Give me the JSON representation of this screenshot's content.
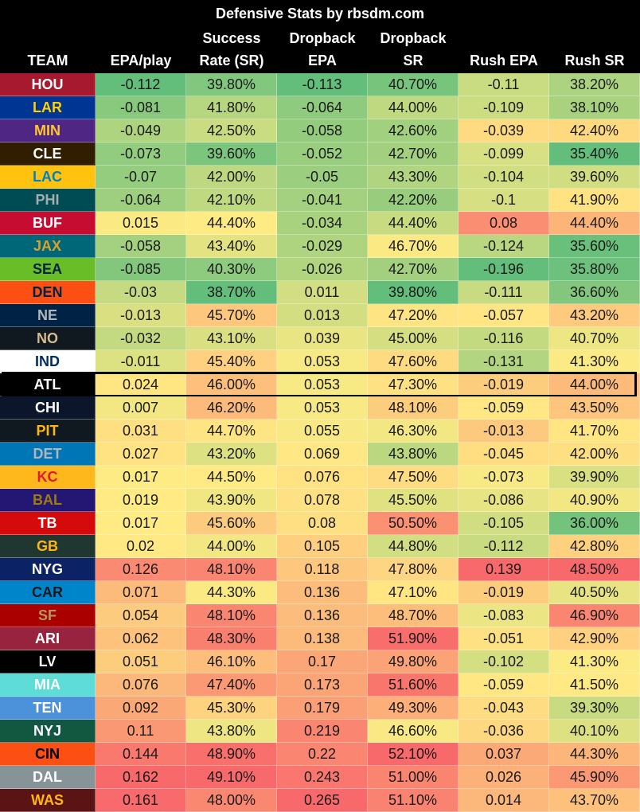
{
  "chart_data": {
    "type": "table",
    "title": "Defensive Stats by rbsdm.com",
    "columns": [
      {
        "key": "team",
        "label": [
          "",
          "",
          "TEAM"
        ]
      },
      {
        "key": "epa",
        "label": [
          "",
          "",
          "EPA/play"
        ]
      },
      {
        "key": "sr",
        "label": [
          "",
          "Success",
          "Rate (SR)"
        ]
      },
      {
        "key": "dbepa",
        "label": [
          "",
          "Dropback",
          "EPA"
        ]
      },
      {
        "key": "dbsr",
        "label": [
          "",
          "Dropback",
          "SR"
        ]
      },
      {
        "key": "rushepa",
        "label": [
          "",
          "",
          "Rush EPA"
        ]
      },
      {
        "key": "rushsr",
        "label": [
          "",
          "",
          "Rush SR"
        ]
      }
    ],
    "highlighted_team": "ATL",
    "rows": [
      {
        "team": "HOU",
        "bg": "#A6192E",
        "fg": "#FFFFFF",
        "epa": "-0.112",
        "sr": "39.80%",
        "dbepa": "-0.113",
        "dbsr": "40.70%",
        "rushepa": "-0.11",
        "rushsr": "38.20%"
      },
      {
        "team": "LAR",
        "bg": "#003594",
        "fg": "#FFD100",
        "epa": "-0.081",
        "sr": "41.80%",
        "dbepa": "-0.064",
        "dbsr": "44.00%",
        "rushepa": "-0.109",
        "rushsr": "38.10%"
      },
      {
        "team": "MIN",
        "bg": "#4F2683",
        "fg": "#FFC62F",
        "epa": "-0.049",
        "sr": "42.50%",
        "dbepa": "-0.058",
        "dbsr": "42.60%",
        "rushepa": "-0.039",
        "rushsr": "42.40%"
      },
      {
        "team": "CLE",
        "bg": "#311D00",
        "fg": "#FFFFFF",
        "epa": "-0.073",
        "sr": "39.60%",
        "dbepa": "-0.052",
        "dbsr": "42.70%",
        "rushepa": "-0.099",
        "rushsr": "35.40%"
      },
      {
        "team": "LAC",
        "bg": "#FFC20E",
        "fg": "#0080C6",
        "epa": "-0.07",
        "sr": "42.00%",
        "dbepa": "-0.05",
        "dbsr": "43.30%",
        "rushepa": "-0.104",
        "rushsr": "39.60%"
      },
      {
        "team": "PHI",
        "bg": "#004C54",
        "fg": "#A5ACAF",
        "epa": "-0.064",
        "sr": "42.10%",
        "dbepa": "-0.041",
        "dbsr": "42.20%",
        "rushepa": "-0.1",
        "rushsr": "41.90%"
      },
      {
        "team": "BUF",
        "bg": "#C60C30",
        "fg": "#FFFFFF",
        "epa": "0.015",
        "sr": "44.40%",
        "dbepa": "-0.034",
        "dbsr": "44.40%",
        "rushepa": "0.08",
        "rushsr": "44.40%"
      },
      {
        "team": "JAX",
        "bg": "#006778",
        "fg": "#D7A22A",
        "epa": "-0.058",
        "sr": "43.40%",
        "dbepa": "-0.029",
        "dbsr": "46.70%",
        "rushepa": "-0.124",
        "rushsr": "35.60%"
      },
      {
        "team": "SEA",
        "bg": "#69BE28",
        "fg": "#002244",
        "epa": "-0.085",
        "sr": "40.30%",
        "dbepa": "-0.026",
        "dbsr": "42.70%",
        "rushepa": "-0.196",
        "rushsr": "35.80%"
      },
      {
        "team": "DEN",
        "bg": "#FB4F14",
        "fg": "#002244",
        "epa": "-0.03",
        "sr": "38.70%",
        "dbepa": "0.011",
        "dbsr": "39.80%",
        "rushepa": "-0.111",
        "rushsr": "36.60%"
      },
      {
        "team": "NE",
        "bg": "#002244",
        "fg": "#B0B7BC",
        "epa": "-0.013",
        "sr": "45.70%",
        "dbepa": "0.013",
        "dbsr": "47.20%",
        "rushepa": "-0.057",
        "rushsr": "43.20%"
      },
      {
        "team": "NO",
        "bg": "#101820",
        "fg": "#D3BC8D",
        "epa": "-0.032",
        "sr": "43.10%",
        "dbepa": "0.039",
        "dbsr": "45.00%",
        "rushepa": "-0.116",
        "rushsr": "40.70%"
      },
      {
        "team": "IND",
        "bg": "#FFFFFF",
        "fg": "#002C5F",
        "epa": "-0.011",
        "sr": "45.40%",
        "dbepa": "0.053",
        "dbsr": "47.60%",
        "rushepa": "-0.131",
        "rushsr": "41.30%"
      },
      {
        "team": "ATL",
        "bg": "#000000",
        "fg": "#FFFFFF",
        "epa": "0.024",
        "sr": "46.00%",
        "dbepa": "0.053",
        "dbsr": "47.30%",
        "rushepa": "-0.019",
        "rushsr": "44.00%"
      },
      {
        "team": "CHI",
        "bg": "#0B162A",
        "fg": "#FFFFFF",
        "epa": "0.007",
        "sr": "46.20%",
        "dbepa": "0.053",
        "dbsr": "48.10%",
        "rushepa": "-0.059",
        "rushsr": "43.50%"
      },
      {
        "team": "PIT",
        "bg": "#101820",
        "fg": "#FFB612",
        "epa": "0.031",
        "sr": "44.70%",
        "dbepa": "0.055",
        "dbsr": "46.30%",
        "rushepa": "-0.013",
        "rushsr": "41.70%"
      },
      {
        "team": "DET",
        "bg": "#0076B6",
        "fg": "#B0B7BC",
        "epa": "0.027",
        "sr": "43.20%",
        "dbepa": "0.069",
        "dbsr": "43.80%",
        "rushepa": "-0.045",
        "rushsr": "42.00%"
      },
      {
        "team": "KC",
        "bg": "#FFB81C",
        "fg": "#E31837",
        "epa": "0.017",
        "sr": "44.50%",
        "dbepa": "0.076",
        "dbsr": "47.50%",
        "rushepa": "-0.073",
        "rushsr": "39.90%"
      },
      {
        "team": "BAL",
        "bg": "#241773",
        "fg": "#9E7C0C",
        "epa": "0.019",
        "sr": "43.90%",
        "dbepa": "0.078",
        "dbsr": "45.50%",
        "rushepa": "-0.086",
        "rushsr": "40.90%"
      },
      {
        "team": "TB",
        "bg": "#D50A0A",
        "fg": "#FFFFFF",
        "epa": "0.017",
        "sr": "45.60%",
        "dbepa": "0.08",
        "dbsr": "50.50%",
        "rushepa": "-0.105",
        "rushsr": "36.00%"
      },
      {
        "team": "GB",
        "bg": "#203731",
        "fg": "#FFB612",
        "epa": "0.02",
        "sr": "44.00%",
        "dbepa": "0.105",
        "dbsr": "44.80%",
        "rushepa": "-0.112",
        "rushsr": "42.80%"
      },
      {
        "team": "NYG",
        "bg": "#0B2265",
        "fg": "#FFFFFF",
        "epa": "0.126",
        "sr": "48.10%",
        "dbepa": "0.118",
        "dbsr": "47.80%",
        "rushepa": "0.139",
        "rushsr": "48.50%"
      },
      {
        "team": "CAR",
        "bg": "#0085CA",
        "fg": "#101820",
        "epa": "0.071",
        "sr": "44.30%",
        "dbepa": "0.136",
        "dbsr": "47.10%",
        "rushepa": "-0.019",
        "rushsr": "40.50%"
      },
      {
        "team": "SF",
        "bg": "#AA0000",
        "fg": "#B3995D",
        "epa": "0.054",
        "sr": "48.10%",
        "dbepa": "0.136",
        "dbsr": "48.70%",
        "rushepa": "-0.083",
        "rushsr": "46.90%"
      },
      {
        "team": "ARI",
        "bg": "#97233F",
        "fg": "#FFFFFF",
        "epa": "0.062",
        "sr": "48.30%",
        "dbepa": "0.138",
        "dbsr": "51.90%",
        "rushepa": "-0.051",
        "rushsr": "42.90%"
      },
      {
        "team": "LV",
        "bg": "#000000",
        "fg": "#FFFFFF",
        "epa": "0.051",
        "sr": "46.10%",
        "dbepa": "0.17",
        "dbsr": "49.80%",
        "rushepa": "-0.102",
        "rushsr": "41.30%"
      },
      {
        "team": "MIA",
        "bg": "#5EDDD8",
        "fg": "#FFFFFF",
        "epa": "0.076",
        "sr": "47.40%",
        "dbepa": "0.173",
        "dbsr": "51.60%",
        "rushepa": "-0.059",
        "rushsr": "41.50%"
      },
      {
        "team": "TEN",
        "bg": "#4B92DB",
        "fg": "#FFFFFF",
        "epa": "0.092",
        "sr": "45.30%",
        "dbepa": "0.179",
        "dbsr": "49.30%",
        "rushepa": "-0.043",
        "rushsr": "39.30%"
      },
      {
        "team": "NYJ",
        "bg": "#125740",
        "fg": "#FFFFFF",
        "epa": "0.11",
        "sr": "43.80%",
        "dbepa": "0.219",
        "dbsr": "46.60%",
        "rushepa": "-0.036",
        "rushsr": "40.10%"
      },
      {
        "team": "CIN",
        "bg": "#FB4F14",
        "fg": "#000000",
        "epa": "0.144",
        "sr": "48.90%",
        "dbepa": "0.22",
        "dbsr": "52.10%",
        "rushepa": "0.037",
        "rushsr": "44.30%"
      },
      {
        "team": "DAL",
        "bg": "#869397",
        "fg": "#FFFFFF",
        "epa": "0.162",
        "sr": "49.10%",
        "dbepa": "0.243",
        "dbsr": "51.00%",
        "rushepa": "0.026",
        "rushsr": "45.90%"
      },
      {
        "team": "WAS",
        "bg": "#5A1414",
        "fg": "#FFB612",
        "epa": "0.161",
        "sr": "48.00%",
        "dbepa": "0.265",
        "dbsr": "51.10%",
        "rushepa": "0.014",
        "rushsr": "43.70%"
      }
    ]
  }
}
